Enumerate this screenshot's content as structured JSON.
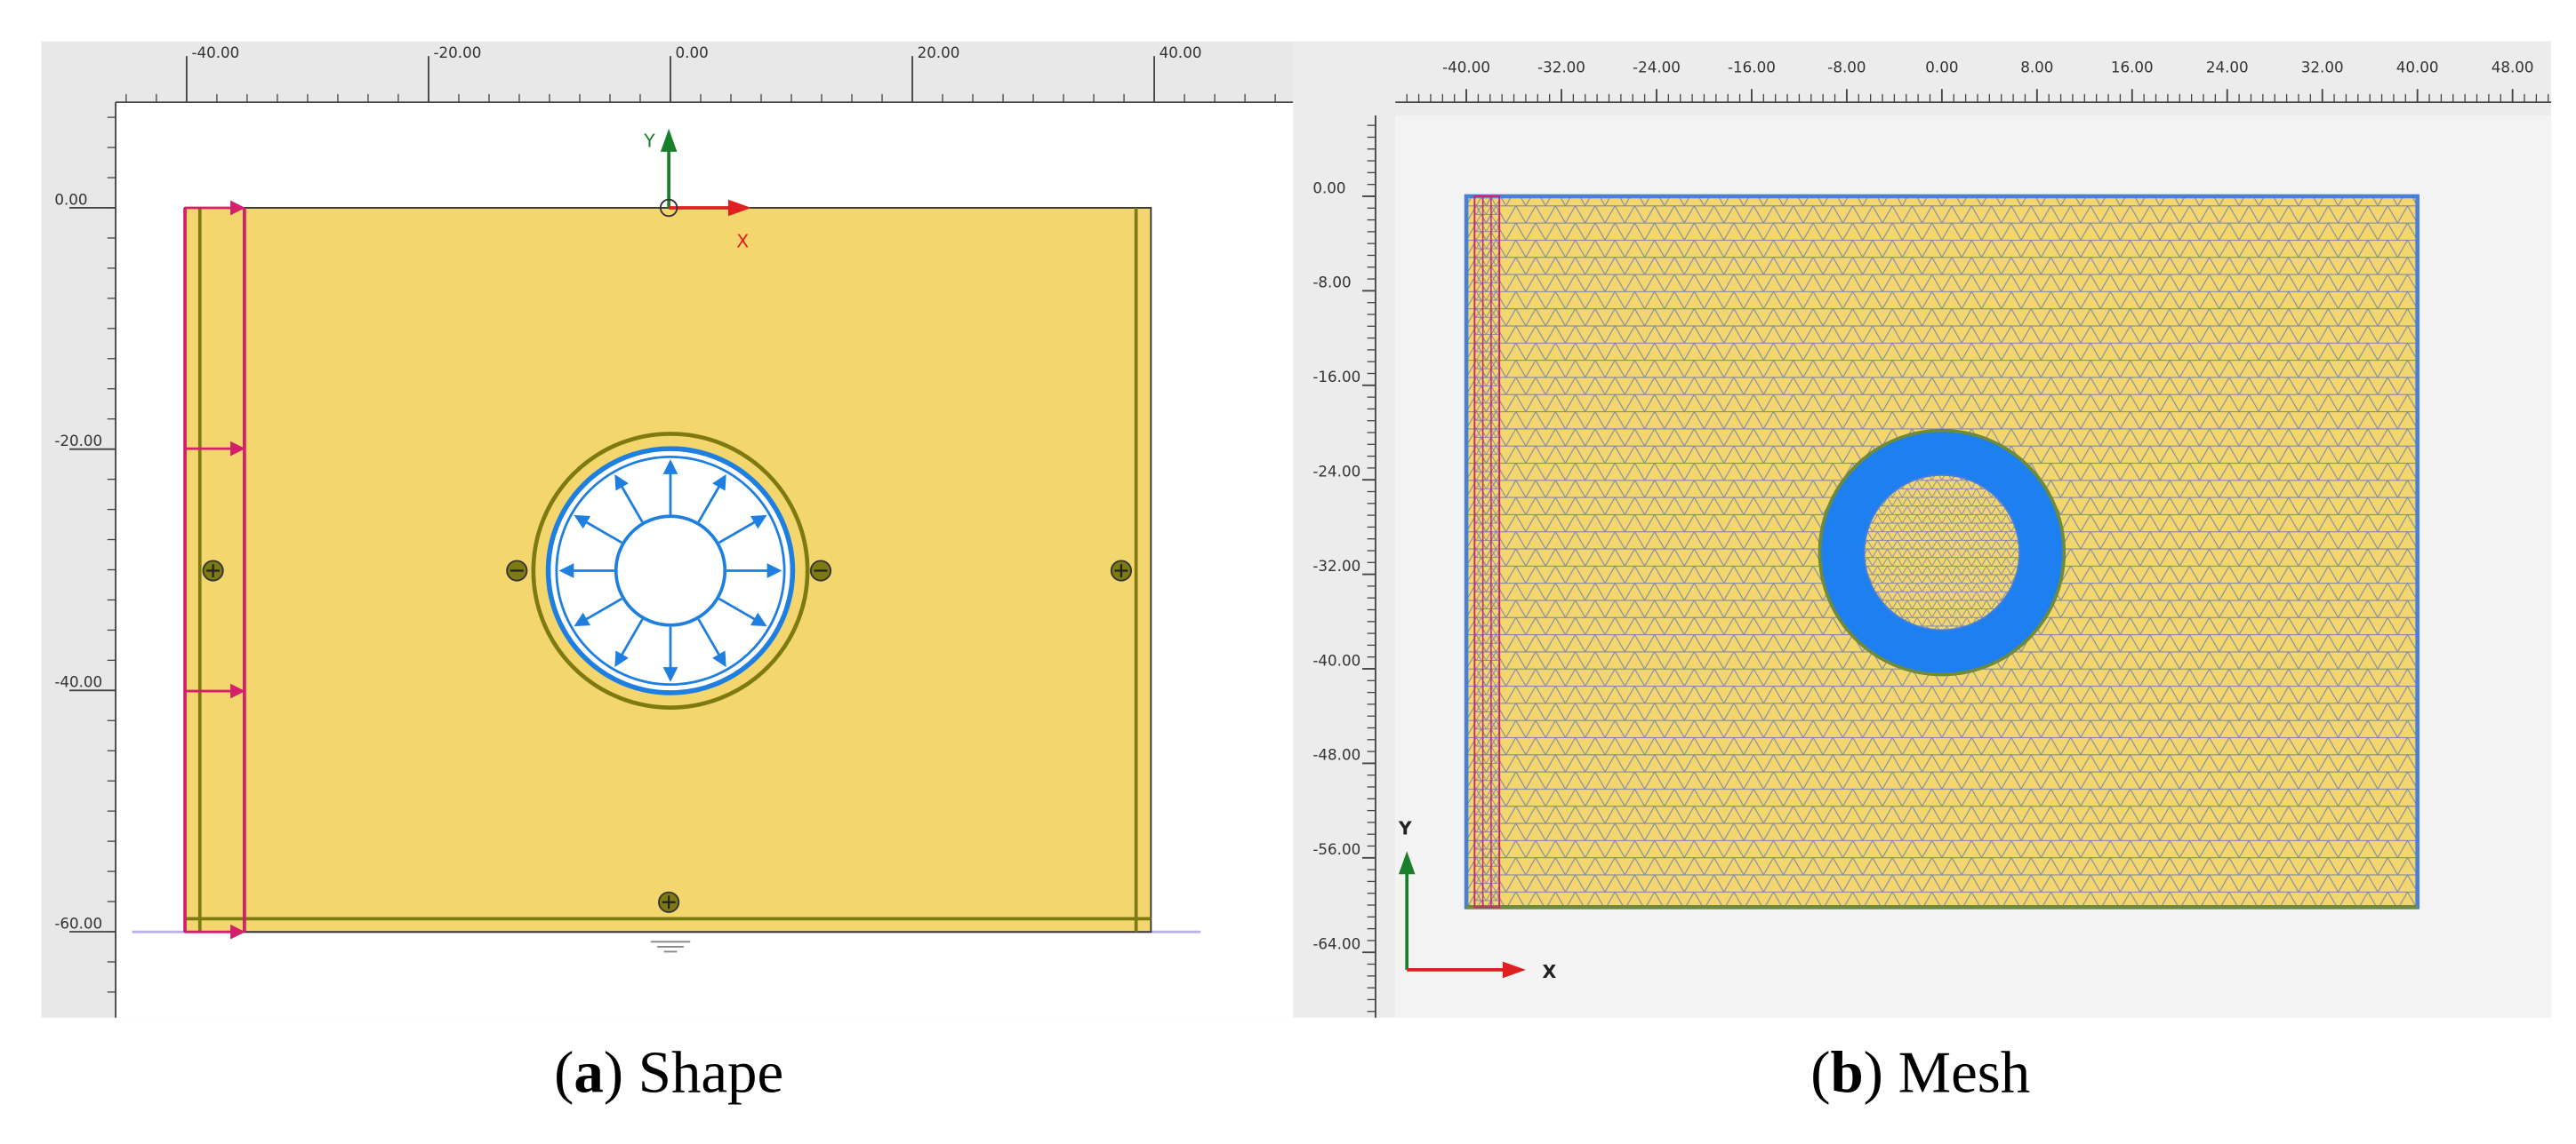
{
  "panel_a": {
    "top_ruler": [
      "-40.00",
      "-20.00",
      "0.00",
      "20.00",
      "40.00"
    ],
    "left_ruler": [
      "0.00",
      "-20.00",
      "-40.00",
      "-60.00"
    ],
    "axis_y": "Y",
    "axis_x": "X",
    "caption": [
      "(",
      "a",
      ") Shape"
    ]
  },
  "panel_b": {
    "top_ruler": [
      "-40.00",
      "-32.00",
      "-24.00",
      "-16.00",
      "-8.00",
      "0.00",
      "8.00",
      "16.00",
      "24.00",
      "32.00",
      "40.00",
      "48.00"
    ],
    "left_ruler": [
      "0.00",
      "-8.00",
      "-16.00",
      "-24.00",
      "-32.00",
      "-40.00",
      "-48.00",
      "-56.00",
      "-64.00"
    ],
    "axis_y": "Y",
    "axis_x": "X",
    "caption": [
      "(",
      "b",
      ") Mesh"
    ]
  }
}
